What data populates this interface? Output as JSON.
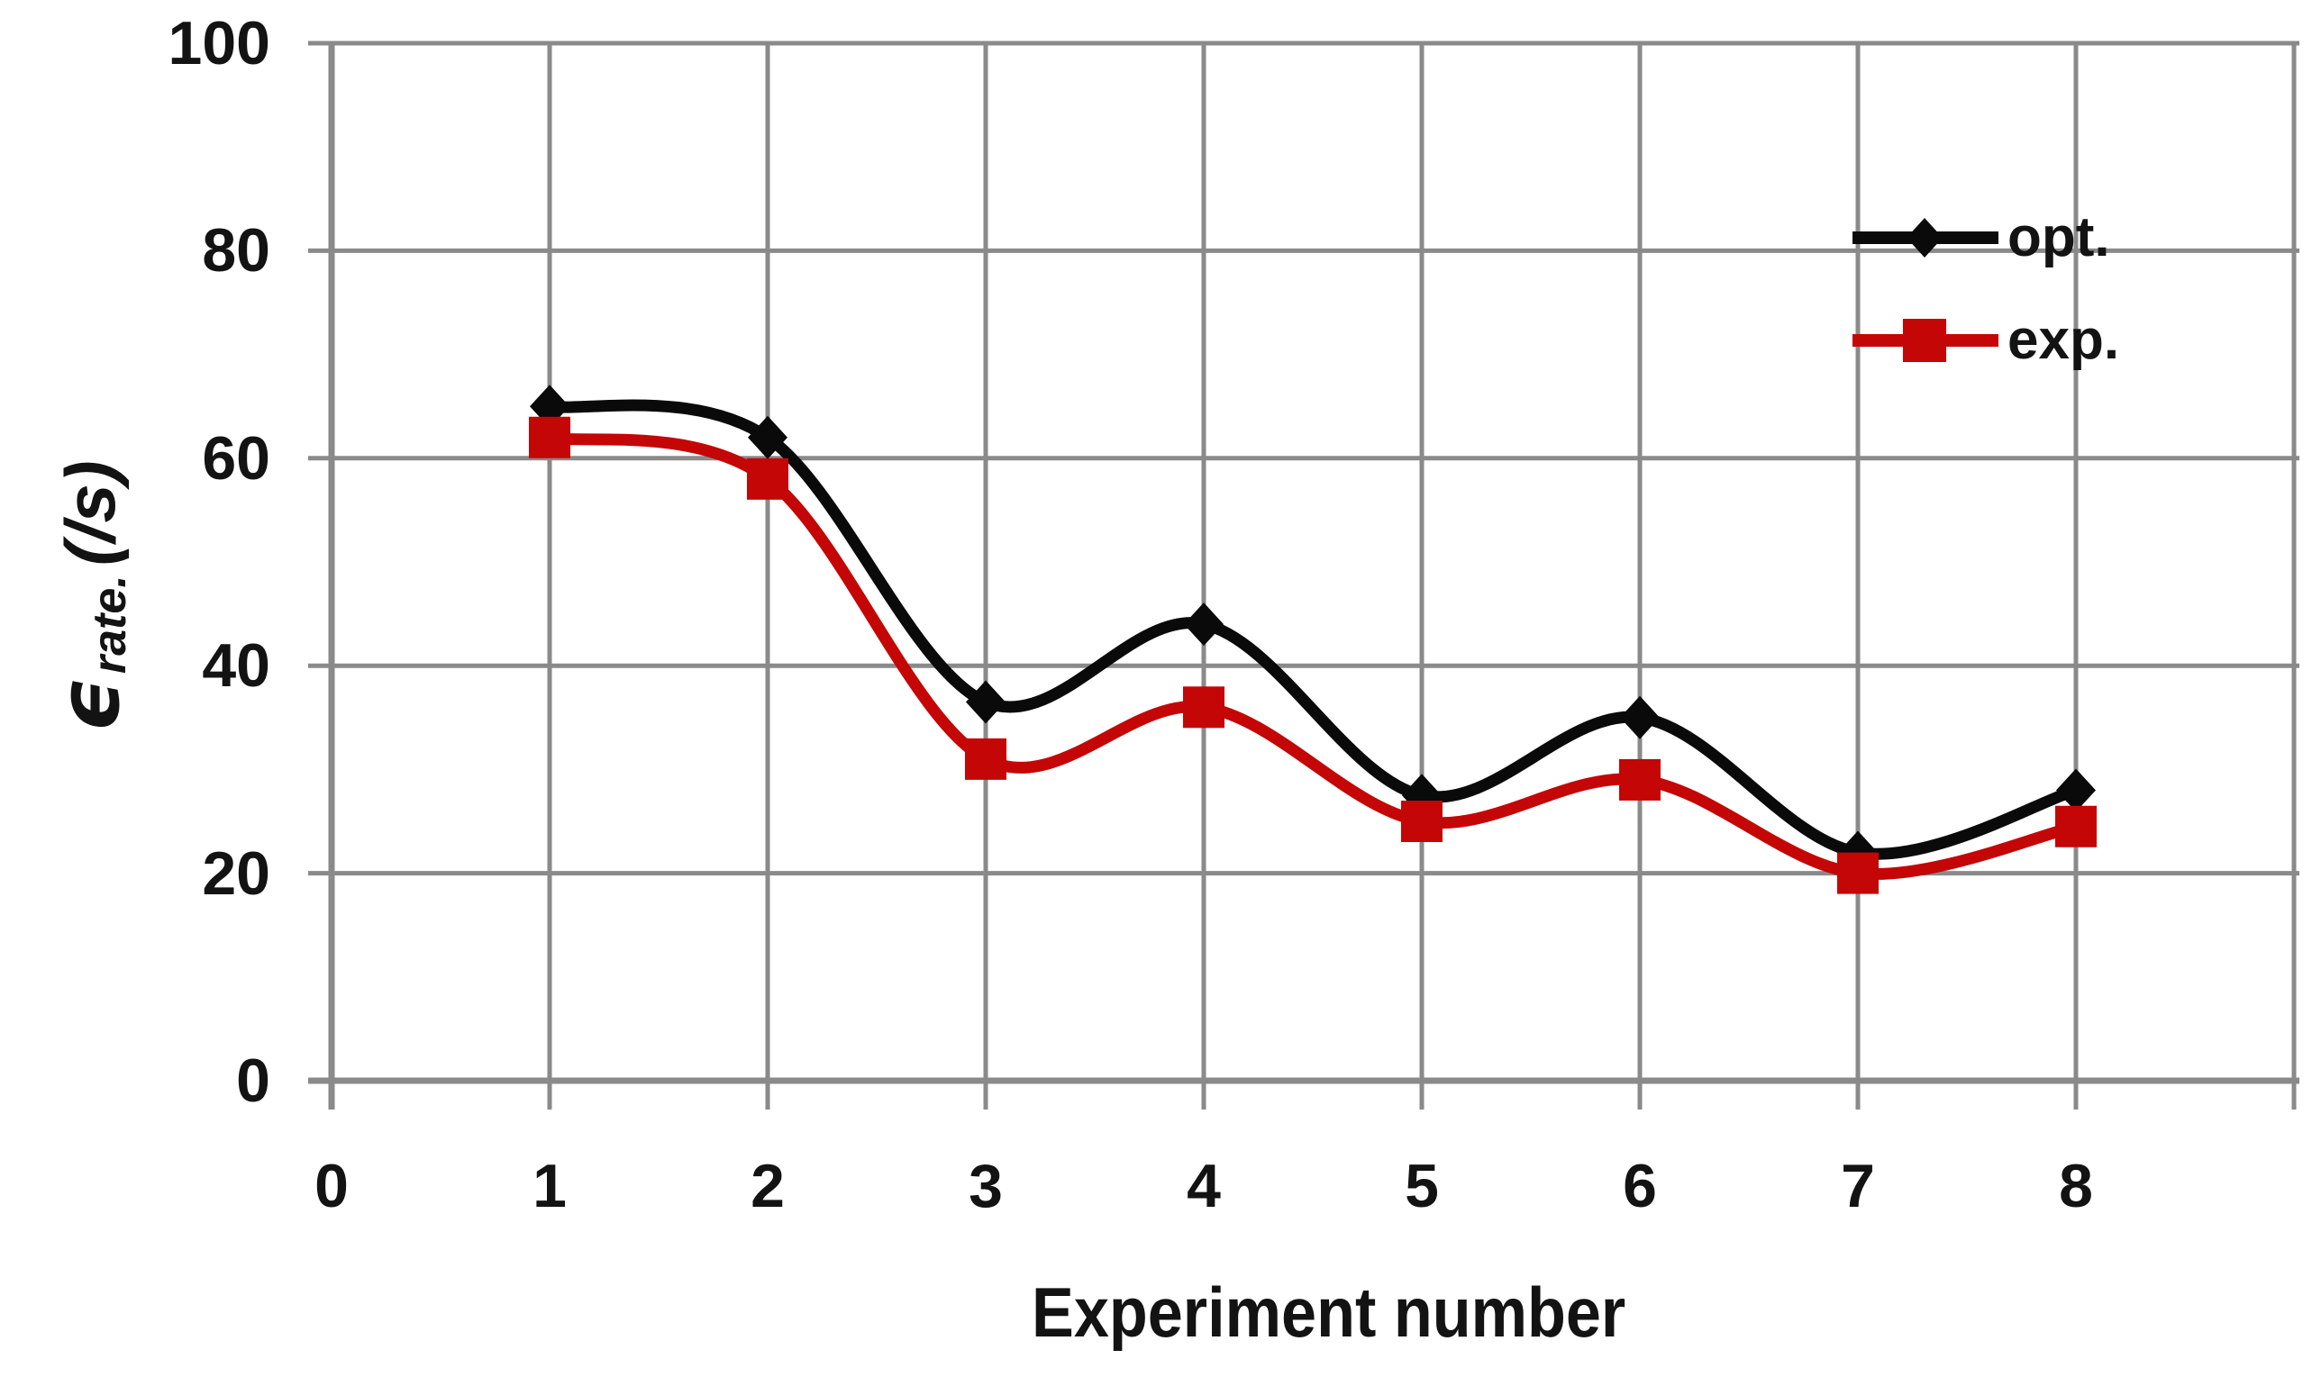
{
  "chart_data": {
    "type": "line",
    "title": "",
    "xlabel": "Experiment number",
    "ylabel": "ϵrate. (/s)",
    "ylabel_symbol": "ϵ",
    "ylabel_subscript": "rate.",
    "ylabel_unit": "(/s)",
    "x": [
      1,
      2,
      3,
      4,
      5,
      6,
      7,
      8
    ],
    "series": [
      {
        "name": "opt.",
        "color": "#0a0a0a",
        "marker": "diamond",
        "values": [
          65,
          62,
          36.5,
          44,
          27.5,
          35,
          22,
          28
        ]
      },
      {
        "name": "exp.",
        "color": "#c40606",
        "marker": "square",
        "values": [
          62,
          58,
          31,
          36,
          25,
          29,
          20,
          24.5
        ]
      }
    ],
    "xticks": [
      "0",
      "1",
      "2",
      "3",
      "4",
      "5",
      "6",
      "7",
      "8"
    ],
    "yticks": [
      "0",
      "20",
      "40",
      "60",
      "80",
      "100"
    ],
    "xlim": [
      0,
      9
    ],
    "ylim": [
      0,
      100
    ],
    "grid": true,
    "grid_color": "#8a8a8a",
    "legend_position": "top-right",
    "smoothed_lines": true
  }
}
